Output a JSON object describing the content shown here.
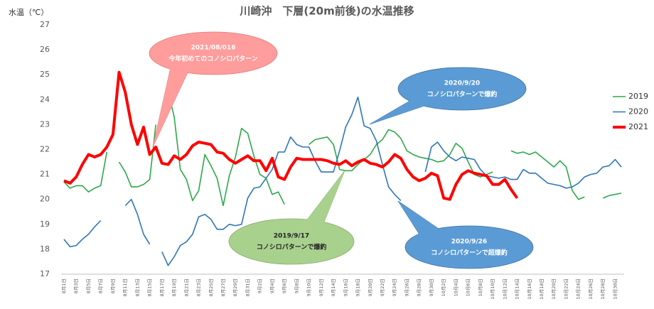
{
  "chart_data": {
    "type": "line",
    "title": "川崎沖　下層(20m前後)の水温推移",
    "y_label": "水温（℃）",
    "categories": [
      "8月1日",
      null,
      "8月3日",
      null,
      "8月5日",
      null,
      "8月7日",
      null,
      "8月9日",
      null,
      "8月11日",
      null,
      "8月13日",
      null,
      "8月15日",
      null,
      "8月17日",
      null,
      "8月19日",
      null,
      "8月21日",
      null,
      "8月23日",
      null,
      "8月25日",
      null,
      "8月27日",
      null,
      "8月29日",
      null,
      "8月31日",
      null,
      "9月2日",
      null,
      "9月4日",
      null,
      "9月6日",
      null,
      "9月8日",
      null,
      "9月10日",
      null,
      "9月12日",
      null,
      "9月14日",
      null,
      "9月16日",
      null,
      "9月18日",
      null,
      "9月20日",
      null,
      "9月22日",
      null,
      "9月24日",
      null,
      "9月26日",
      null,
      "9月28日",
      null,
      "9月30日",
      null,
      "10月2日",
      null,
      "10月4日",
      null,
      "10月6日",
      null,
      "10月8日",
      null,
      "10月10日",
      null,
      "10月12日",
      null,
      "10月14日",
      null,
      "10月16日",
      null,
      "10月18日",
      null,
      "10月20日",
      null,
      "10月22日",
      null,
      "10月24日",
      null,
      "10月26日",
      null,
      "10月28日",
      null,
      "10月30日",
      null
    ],
    "series": [
      {
        "name": "2019",
        "color": "#2ea84a",
        "width": 1.6,
        "values": [
          20.7,
          20.45,
          20.55,
          20.55,
          20.3,
          20.45,
          20.55,
          21.9,
          null,
          21.5,
          21.1,
          20.5,
          20.5,
          20.6,
          20.8,
          23.0,
          null,
          24.35,
          23.3,
          21.2,
          20.8,
          19.95,
          20.35,
          21.8,
          21.35,
          20.85,
          19.75,
          20.95,
          21.7,
          22.85,
          22.65,
          21.75,
          21.0,
          20.85,
          20.2,
          20.3,
          19.8,
          null,
          null,
          null,
          22.2,
          22.4,
          22.45,
          22.5,
          22.2,
          21.2,
          21.15,
          21.15,
          21.4,
          21.6,
          21.8,
          22.2,
          22.4,
          22.8,
          22.7,
          22.45,
          21.95,
          21.8,
          21.7,
          21.65,
          21.6,
          21.5,
          21.55,
          21.8,
          22.25,
          22.05,
          21.5,
          21.0,
          20.9,
          21.0,
          21.1,
          null,
          null,
          21.95,
          21.85,
          21.9,
          21.8,
          21.9,
          21.7,
          21.5,
          21.3,
          21.55,
          21.3,
          20.35,
          20.0,
          20.1,
          null,
          null,
          20.05,
          20.15,
          20.2,
          20.25
        ]
      },
      {
        "name": "2020",
        "color": "#2e75b6",
        "width": 1.6,
        "values": [
          18.4,
          18.1,
          18.15,
          18.4,
          18.6,
          18.9,
          19.15,
          null,
          null,
          null,
          19.75,
          20.0,
          19.4,
          18.6,
          18.2,
          null,
          17.9,
          17.35,
          17.7,
          18.15,
          18.3,
          18.6,
          19.3,
          19.4,
          19.2,
          18.8,
          18.8,
          19.0,
          18.95,
          19.0,
          20.05,
          20.45,
          20.5,
          20.85,
          21.2,
          21.9,
          21.9,
          22.5,
          22.2,
          22.1,
          22.1,
          21.55,
          21.1,
          21.1,
          21.1,
          21.95,
          22.9,
          23.4,
          24.1,
          22.95,
          22.85,
          22.35,
          21.4,
          20.5,
          20.2,
          19.95,
          null,
          null,
          null,
          21.1,
          22.1,
          22.3,
          21.95,
          21.7,
          21.55,
          21.7,
          21.65,
          21.6,
          21.2,
          20.95,
          20.9,
          20.85,
          20.9,
          20.8,
          20.8,
          21.2,
          21.05,
          21.05,
          20.85,
          20.65,
          20.6,
          20.55,
          20.45,
          20.5,
          20.65,
          20.9,
          21.0,
          21.05,
          21.3,
          21.35,
          21.6,
          21.3
        ]
      },
      {
        "name": "2021",
        "color": "#ff0000",
        "width": 4,
        "values": [
          20.75,
          20.65,
          20.9,
          21.4,
          21.8,
          21.7,
          21.8,
          22.1,
          22.6,
          25.1,
          24.3,
          23.0,
          22.2,
          22.9,
          21.8,
          22.1,
          21.45,
          21.4,
          21.75,
          21.6,
          21.8,
          22.15,
          22.3,
          22.25,
          22.2,
          21.9,
          21.85,
          21.6,
          21.45,
          21.6,
          21.75,
          21.55,
          21.55,
          21.15,
          21.65,
          20.9,
          20.8,
          21.3,
          21.65,
          21.6,
          21.6,
          21.6,
          21.6,
          21.55,
          21.45,
          21.4,
          21.55,
          21.35,
          21.5,
          21.6,
          21.45,
          21.4,
          21.3,
          21.5,
          21.8,
          21.65,
          21.2,
          20.9,
          20.75,
          20.85,
          21.05,
          20.95,
          20.05,
          20.0,
          20.6,
          21.0,
          21.15,
          21.05,
          21.0,
          20.95,
          20.6,
          20.6,
          20.8,
          20.4,
          20.05,
          null,
          null,
          null,
          null,
          null,
          null,
          null,
          null,
          null,
          null,
          null,
          null,
          null,
          null,
          null,
          null,
          null
        ]
      }
    ],
    "ylim": [
      17,
      27
    ],
    "yticks": [
      17,
      18,
      19,
      20,
      21,
      22,
      23,
      24,
      25,
      26,
      27
    ],
    "grid": false,
    "legend": "right",
    "annotations": [
      {
        "lines": [
          "2021/08/016",
          "今年初めてのコノシロパターン"
        ],
        "color": "#ff9c9c"
      },
      {
        "lines": [
          "2020/9/20",
          "コノシロパターンで爆釣"
        ],
        "color": "#5b9bd5"
      },
      {
        "lines": [
          "2019/9/17",
          "コノシロパターンで爆釣"
        ],
        "color": "#a9d18e"
      },
      {
        "lines": [
          "2020/9/26",
          "コノシロパターンで超爆釣"
        ],
        "color": "#5b9bd5"
      }
    ]
  }
}
